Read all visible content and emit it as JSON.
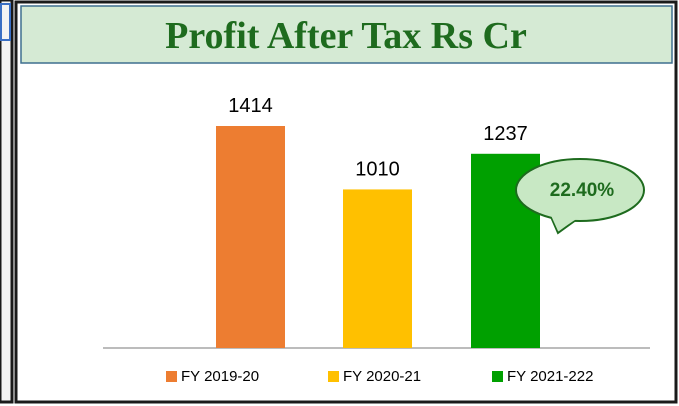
{
  "chart_data": {
    "type": "bar",
    "title": "Profit After Tax Rs Cr",
    "series": [
      {
        "name": "FY 2019-20",
        "color": "#ed7d31",
        "values": [
          1414
        ]
      },
      {
        "name": "FY 2020-21",
        "color": "#ffc000",
        "values": [
          1010
        ]
      },
      {
        "name": "FY 2021-222",
        "color": "#00a000",
        "values": [
          1237
        ]
      }
    ],
    "annotation": "22.40%"
  }
}
